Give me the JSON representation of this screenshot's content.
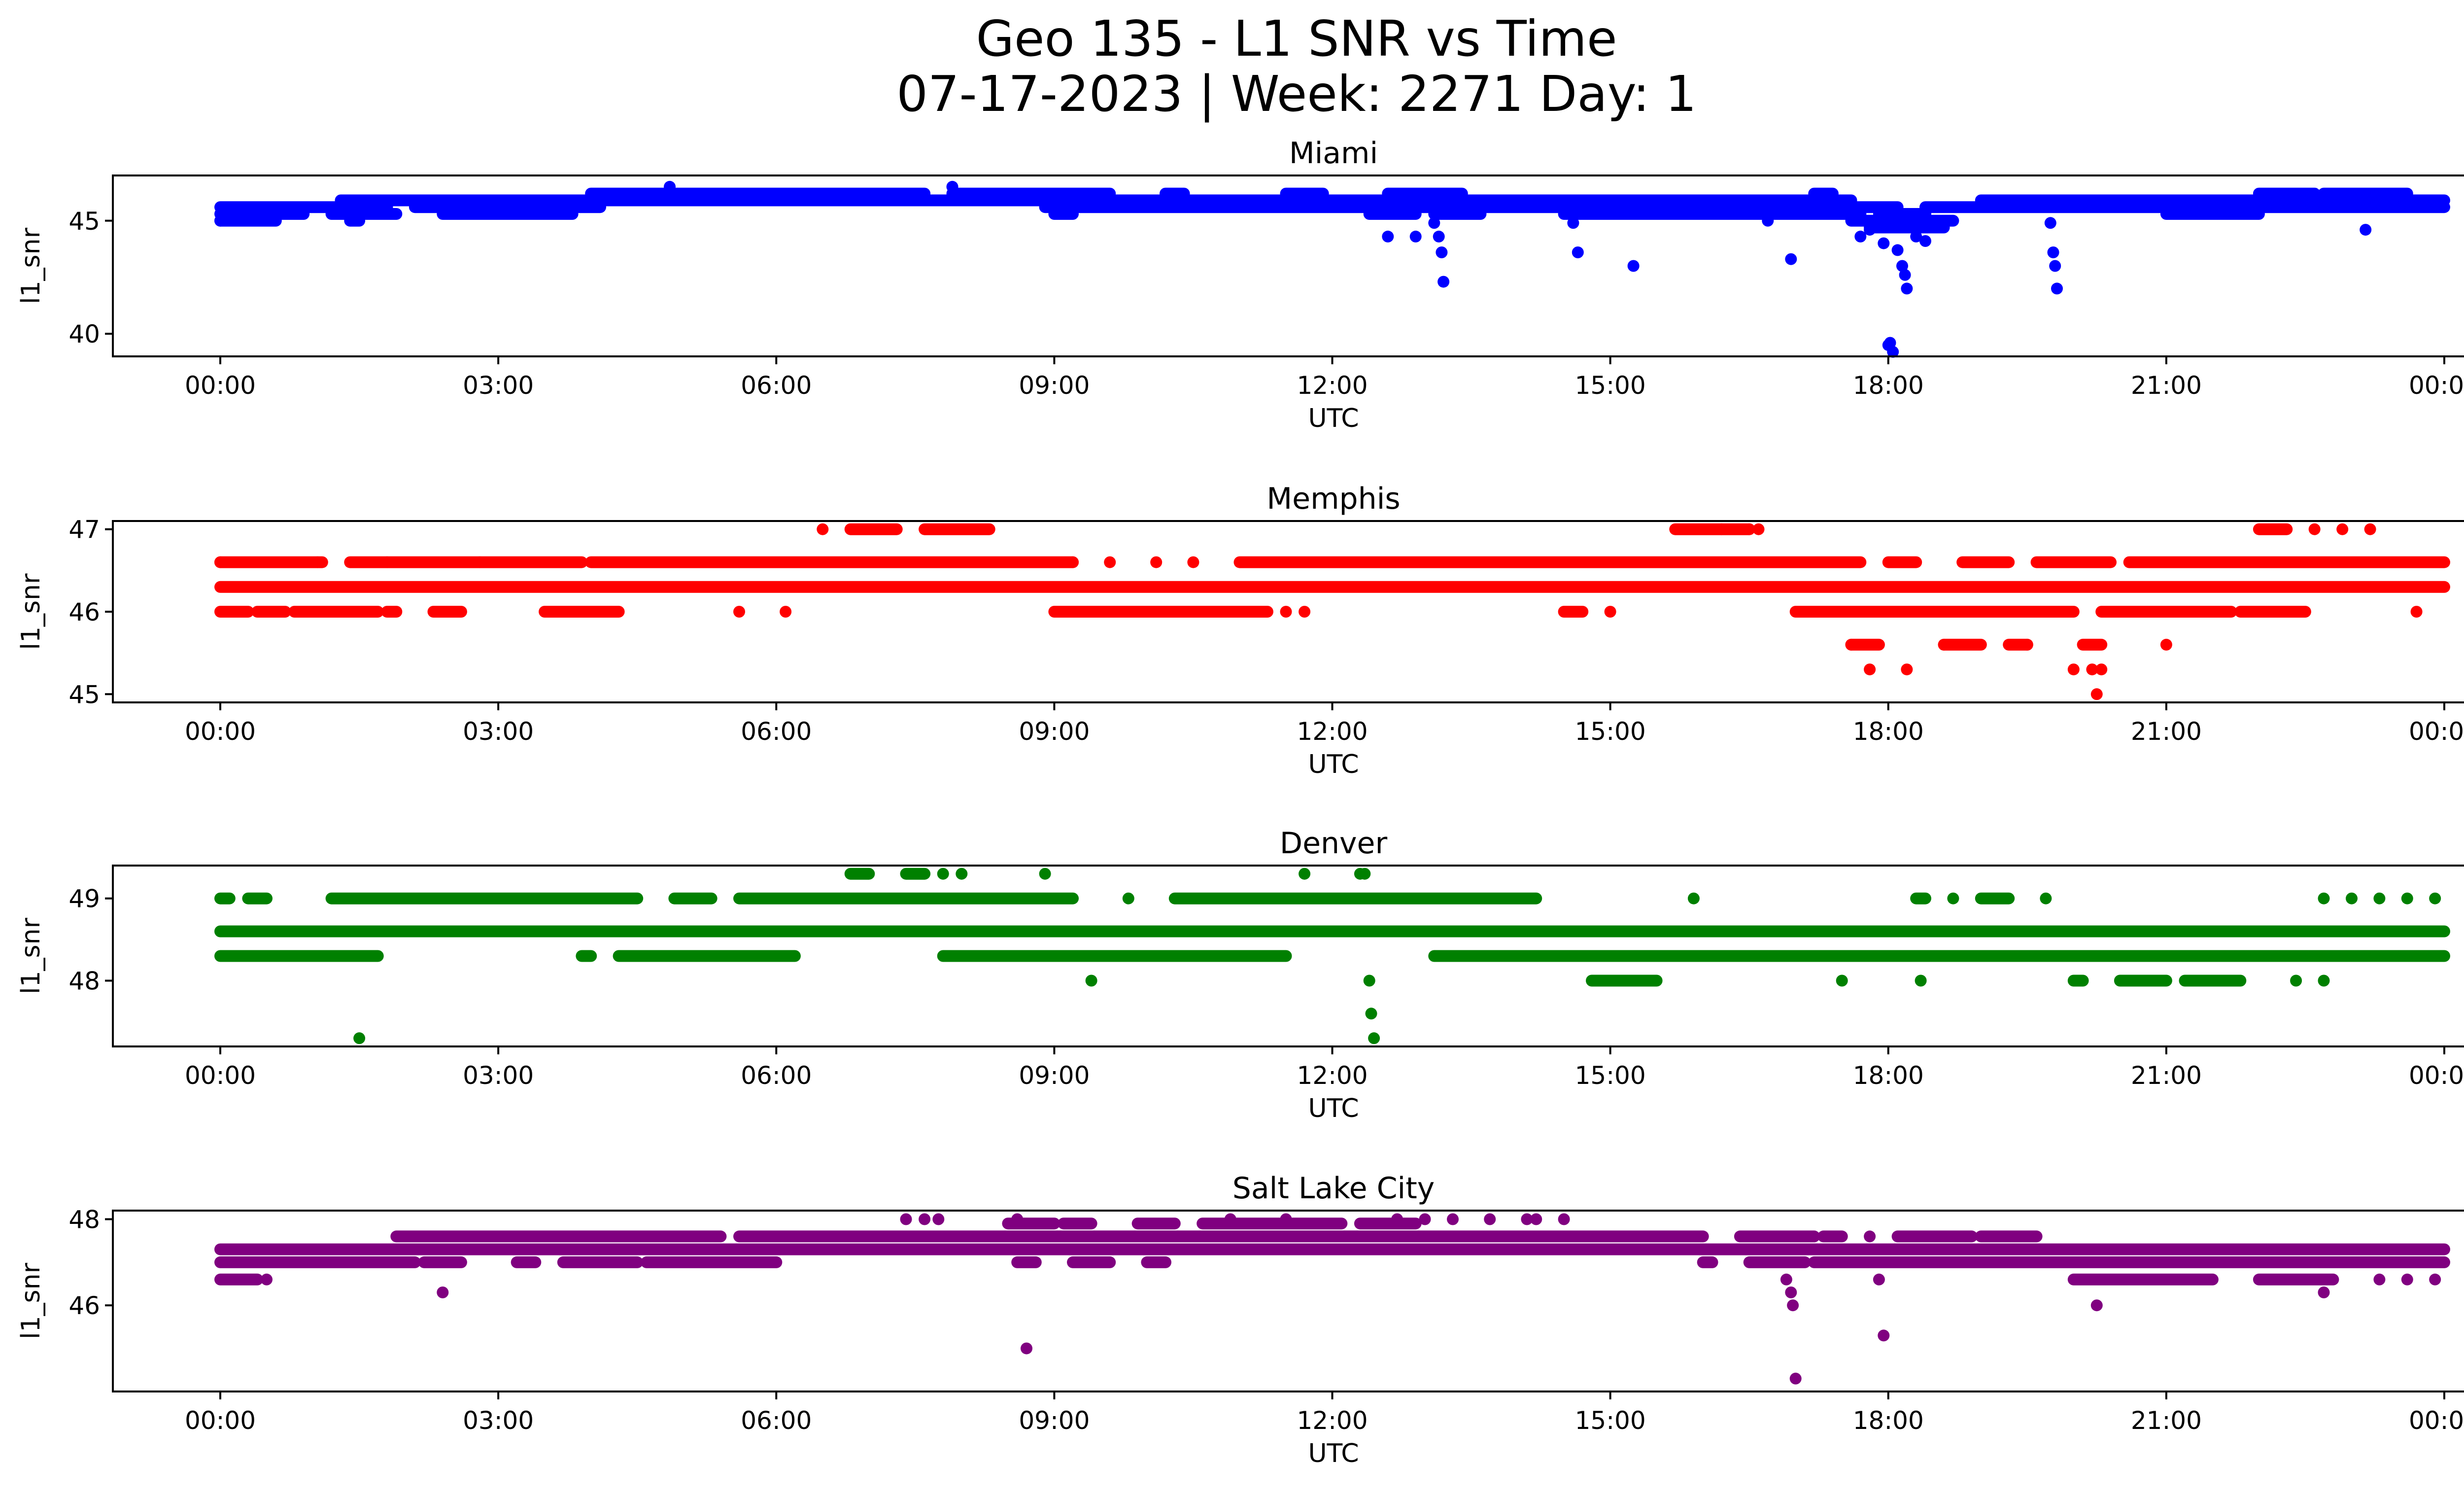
{
  "title_line1": "Geo 135 - L1 SNR vs Time",
  "title_line2": "07-17-2023 | Week: 2271 Day: 1",
  "chart_data": [
    {
      "type": "scatter",
      "title": "Miami",
      "xlabel": "UTC",
      "ylabel": "l1_snr",
      "color": "#0000ff",
      "xlim": [
        -0.3,
        24.3
      ],
      "ylim": [
        39,
        47
      ],
      "xticks": [
        "00:00",
        "03:00",
        "06:00",
        "09:00",
        "12:00",
        "15:00",
        "18:00",
        "21:00",
        "00:00"
      ],
      "yticks": [
        40,
        45
      ],
      "bands": [
        {
          "y": 45.3,
          "segments": [
            [
              0,
              0.9
            ],
            [
              1.2,
              1.9
            ],
            [
              2.4,
              3.8
            ],
            [
              9.0,
              9.2
            ],
            [
              12.4,
              12.9
            ],
            [
              13.1,
              13.6
            ],
            [
              14.5,
              17.7
            ],
            [
              17.9,
              18.4
            ],
            [
              21.0,
              22.0
            ]
          ]
        },
        {
          "y": 45.6,
          "segments": [
            [
              0,
              1.8
            ],
            [
              2.1,
              4.1
            ],
            [
              8.9,
              18.1
            ],
            [
              18.4,
              24.0
            ]
          ]
        },
        {
          "y": 45.9,
          "segments": [
            [
              1.3,
              17.6
            ],
            [
              19.0,
              24.0
            ]
          ]
        },
        {
          "y": 46.2,
          "segments": [
            [
              4.0,
              7.6
            ],
            [
              7.9,
              9.6
            ],
            [
              10.2,
              10.4
            ],
            [
              11.5,
              11.9
            ],
            [
              12.6,
              13.4
            ],
            [
              17.2,
              17.4
            ],
            [
              22.0,
              22.6
            ],
            [
              22.7,
              23.6
            ]
          ]
        },
        {
          "y": 45.0,
          "segments": [
            [
              0.0,
              0.6
            ],
            [
              1.4,
              1.5
            ],
            [
              17.6,
              18.7
            ]
          ]
        },
        {
          "y": 44.7,
          "segments": [
            [
              17.8,
              18.6
            ]
          ]
        }
      ],
      "points": [
        [
          0.0,
          45.0
        ],
        [
          4.85,
          46.5
        ],
        [
          7.9,
          46.5
        ],
        [
          12.6,
          44.3
        ],
        [
          12.9,
          44.3
        ],
        [
          13.1,
          44.9
        ],
        [
          13.15,
          44.3
        ],
        [
          13.18,
          43.6
        ],
        [
          13.2,
          42.3
        ],
        [
          14.6,
          44.9
        ],
        [
          14.65,
          43.6
        ],
        [
          15.25,
          43.0
        ],
        [
          16.95,
          43.3
        ],
        [
          16.7,
          45.0
        ],
        [
          17.7,
          44.3
        ],
        [
          17.8,
          44.6
        ],
        [
          17.95,
          44.0
        ],
        [
          18.0,
          39.5
        ],
        [
          18.02,
          39.6
        ],
        [
          18.05,
          39.2
        ],
        [
          18.1,
          43.7
        ],
        [
          18.15,
          43.0
        ],
        [
          18.18,
          42.6
        ],
        [
          18.2,
          42.0
        ],
        [
          18.3,
          44.3
        ],
        [
          18.4,
          44.1
        ],
        [
          19.75,
          44.9
        ],
        [
          19.78,
          43.6
        ],
        [
          19.8,
          43.0
        ],
        [
          19.82,
          42.0
        ],
        [
          23.15,
          44.6
        ]
      ]
    },
    {
      "type": "scatter",
      "title": "Memphis",
      "xlabel": "UTC",
      "ylabel": "l1_snr",
      "color": "#ff0000",
      "xlim": [
        -1.2,
        25.2
      ],
      "ylim": [
        44.9,
        47.1
      ],
      "xticks": [
        "00:00",
        "03:00",
        "06:00",
        "09:00",
        "12:00",
        "15:00",
        "18:00",
        "21:00",
        "00:00"
      ],
      "yticks": [
        45,
        46,
        47
      ],
      "bands": [
        {
          "y": 46.3,
          "segments": [
            [
              0,
              24.0
            ]
          ]
        },
        {
          "y": 46.6,
          "segments": [
            [
              0,
              1.1
            ],
            [
              1.4,
              1.8
            ],
            [
              1.8,
              3.9
            ],
            [
              4.0,
              9.2
            ],
            [
              11.0,
              17.7
            ],
            [
              18.0,
              18.3
            ],
            [
              18.8,
              19.3
            ],
            [
              19.6,
              20.4
            ],
            [
              20.6,
              24.0
            ]
          ]
        },
        {
          "y": 46.0,
          "segments": [
            [
              0.0,
              0.3
            ],
            [
              0.4,
              0.7
            ],
            [
              0.8,
              1.7
            ],
            [
              1.8,
              1.9
            ],
            [
              2.3,
              2.6
            ],
            [
              3.5,
              4.3
            ],
            [
              9.0,
              11.3
            ],
            [
              14.5,
              14.7
            ],
            [
              17.0,
              20.0
            ],
            [
              20.3,
              21.7
            ],
            [
              21.8,
              22.5
            ]
          ]
        },
        {
          "y": 47.0,
          "segments": [
            [
              6.8,
              7.3
            ],
            [
              7.6,
              8.3
            ],
            [
              15.7,
              16.5
            ],
            [
              22.0,
              22.3
            ]
          ]
        },
        {
          "y": 45.6,
          "segments": [
            [
              17.6,
              17.9
            ],
            [
              18.6,
              19.0
            ],
            [
              19.3,
              19.5
            ],
            [
              20.1,
              20.3
            ]
          ]
        }
      ],
      "points": [
        [
          0.0,
          46.6
        ],
        [
          1.05,
          46.6
        ],
        [
          2.8,
          46.6
        ],
        [
          5.6,
          46.0
        ],
        [
          6.1,
          46.0
        ],
        [
          6.5,
          47.0
        ],
        [
          9.2,
          46.6
        ],
        [
          9.6,
          46.6
        ],
        [
          10.1,
          46.6
        ],
        [
          10.5,
          46.6
        ],
        [
          11.5,
          46.0
        ],
        [
          11.7,
          46.0
        ],
        [
          15.0,
          46.0
        ],
        [
          16.2,
          47.0
        ],
        [
          16.5,
          47.0
        ],
        [
          16.6,
          47.0
        ],
        [
          17.6,
          45.6
        ],
        [
          17.8,
          45.3
        ],
        [
          18.2,
          45.3
        ],
        [
          18.6,
          45.6
        ],
        [
          19.5,
          45.6
        ],
        [
          20.0,
          45.3
        ],
        [
          20.2,
          45.3
        ],
        [
          20.25,
          45.0
        ],
        [
          20.3,
          45.3
        ],
        [
          21.0,
          45.6
        ],
        [
          22.1,
          46.0
        ],
        [
          22.6,
          47.0
        ],
        [
          22.9,
          47.0
        ],
        [
          23.2,
          47.0
        ],
        [
          23.7,
          46.0
        ]
      ]
    },
    {
      "type": "scatter",
      "title": "Denver",
      "xlabel": "UTC",
      "ylabel": "l1_snr",
      "color": "#008000",
      "xlim": [
        -1.2,
        25.2
      ],
      "ylim": [
        47.2,
        49.4
      ],
      "xticks": [
        "00:00",
        "03:00",
        "06:00",
        "09:00",
        "12:00",
        "15:00",
        "18:00",
        "21:00",
        "00:00"
      ],
      "yticks": [
        48,
        49
      ],
      "bands": [
        {
          "y": 48.6,
          "segments": [
            [
              0,
              24.0
            ]
          ]
        },
        {
          "y": 49.0,
          "segments": [
            [
              0.0,
              0.1
            ],
            [
              0.3,
              0.5
            ],
            [
              1.2,
              4.5
            ],
            [
              4.9,
              5.3
            ],
            [
              5.6,
              9.2
            ],
            [
              10.3,
              14.2
            ],
            [
              18.3,
              18.4
            ],
            [
              19.0,
              19.3
            ]
          ]
        },
        {
          "y": 48.3,
          "segments": [
            [
              0.0,
              1.7
            ],
            [
              3.9,
              4.0
            ],
            [
              4.3,
              6.2
            ],
            [
              7.8,
              11.5
            ],
            [
              13.1,
              24.0
            ]
          ]
        },
        {
          "y": 48.0,
          "segments": [
            [
              14.8,
              15.5
            ],
            [
              20.0,
              20.1
            ],
            [
              20.5,
              21.0
            ],
            [
              21.2,
              21.8
            ]
          ]
        },
        {
          "y": 49.3,
          "segments": [
            [
              6.8,
              7.0
            ],
            [
              7.4,
              7.6
            ]
          ]
        }
      ],
      "points": [
        [
          1.5,
          47.3
        ],
        [
          7.8,
          49.3
        ],
        [
          8.0,
          49.3
        ],
        [
          8.9,
          49.3
        ],
        [
          9.4,
          48.0
        ],
        [
          9.8,
          49.0
        ],
        [
          11.7,
          49.3
        ],
        [
          12.3,
          49.3
        ],
        [
          12.35,
          49.3
        ],
        [
          12.4,
          48.0
        ],
        [
          12.42,
          47.6
        ],
        [
          12.45,
          47.3
        ],
        [
          15.9,
          49.0
        ],
        [
          17.5,
          48.0
        ],
        [
          18.35,
          48.0
        ],
        [
          18.7,
          49.0
        ],
        [
          19.7,
          49.0
        ],
        [
          22.4,
          48.0
        ],
        [
          22.7,
          48.0
        ],
        [
          22.7,
          49.0
        ],
        [
          23.0,
          49.0
        ],
        [
          23.3,
          49.0
        ],
        [
          23.6,
          49.0
        ],
        [
          23.9,
          49.0
        ]
      ]
    },
    {
      "type": "scatter",
      "title": "Salt Lake City",
      "xlabel": "UTC",
      "ylabel": "l1_snr",
      "color": "#800080",
      "xlim": [
        -1.2,
        25.2
      ],
      "ylim": [
        44.0,
        48.2
      ],
      "xticks": [
        "00:00",
        "03:00",
        "06:00",
        "09:00",
        "12:00",
        "15:00",
        "18:00",
        "21:00",
        "00:00"
      ],
      "yticks": [
        46,
        48
      ],
      "bands": [
        {
          "y": 47.0,
          "segments": [
            [
              0.0,
              2.1
            ],
            [
              2.2,
              2.6
            ],
            [
              3.2,
              3.4
            ],
            [
              3.7,
              4.5
            ],
            [
              4.6,
              6.0
            ],
            [
              8.6,
              8.8
            ],
            [
              9.2,
              9.6
            ],
            [
              10.0,
              10.2
            ],
            [
              16.0,
              16.1
            ],
            [
              16.5,
              17.1
            ],
            [
              17.2,
              24.0
            ]
          ]
        },
        {
          "y": 47.3,
          "segments": [
            [
              0,
              24.0
            ]
          ]
        },
        {
          "y": 47.6,
          "segments": [
            [
              1.9,
              5.4
            ],
            [
              5.6,
              16.0
            ],
            [
              16.4,
              17.2
            ],
            [
              17.3,
              17.5
            ],
            [
              18.1,
              18.9
            ],
            [
              19.0,
              19.6
            ]
          ]
        },
        {
          "y": 47.9,
          "segments": [
            [
              8.5,
              9.0
            ],
            [
              9.1,
              9.4
            ],
            [
              9.9,
              10.3
            ],
            [
              10.6,
              12.1
            ],
            [
              12.3,
              12.9
            ]
          ]
        },
        {
          "y": 46.6,
          "segments": [
            [
              0.0,
              0.4
            ],
            [
              20.0,
              21.5
            ],
            [
              22.0,
              22.8
            ]
          ]
        }
      ],
      "points": [
        [
          0.5,
          46.6
        ],
        [
          2.4,
          46.3
        ],
        [
          7.4,
          48.0
        ],
        [
          7.6,
          48.0
        ],
        [
          7.75,
          48.0
        ],
        [
          8.6,
          48.0
        ],
        [
          8.7,
          45.0
        ],
        [
          10.9,
          48.0
        ],
        [
          11.5,
          48.0
        ],
        [
          12.7,
          48.0
        ],
        [
          13.0,
          48.0
        ],
        [
          13.3,
          48.0
        ],
        [
          13.7,
          48.0
        ],
        [
          14.1,
          48.0
        ],
        [
          14.2,
          48.0
        ],
        [
          14.5,
          48.0
        ],
        [
          16.9,
          46.6
        ],
        [
          16.95,
          46.3
        ],
        [
          16.97,
          46.0
        ],
        [
          17.0,
          44.3
        ],
        [
          17.8,
          47.6
        ],
        [
          17.9,
          46.6
        ],
        [
          17.95,
          45.3
        ],
        [
          20.25,
          46.0
        ],
        [
          22.7,
          46.3
        ],
        [
          23.3,
          46.6
        ],
        [
          23.6,
          46.6
        ],
        [
          23.9,
          46.6
        ]
      ]
    }
  ]
}
